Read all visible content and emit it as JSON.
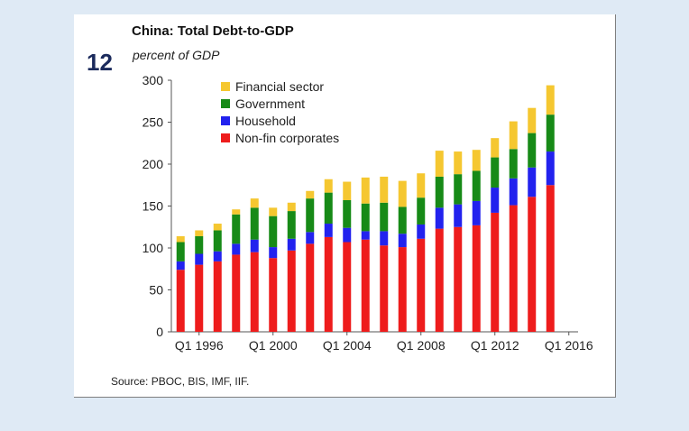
{
  "chart_data": {
    "type": "bar",
    "stacked": true,
    "title": "China: Total Debt-to-GDP",
    "figure_number": "12",
    "subtitle": "percent of GDP",
    "ylabel": "percent of GDP",
    "xlabel": "",
    "ylim": [
      0,
      300
    ],
    "yticks": [
      "0",
      "50",
      "100",
      "150",
      "200",
      "250",
      "300"
    ],
    "xticks": [
      "Q1 1996",
      "Q1 2000",
      "Q1 2004",
      "Q1 2008",
      "Q1 2012",
      "Q1 2016"
    ],
    "legend_position": "top-left",
    "categories": [
      "1995",
      "1996",
      "1997",
      "1998",
      "1999",
      "2000",
      "2001",
      "2002",
      "2003",
      "2004",
      "2005",
      "2006",
      "2007",
      "2008",
      "2009",
      "2010",
      "2011",
      "2012",
      "2013",
      "2014",
      "2015",
      "2016"
    ],
    "series": [
      {
        "name": "Non-fin corporates",
        "color": "#ee1c1c",
        "values": [
          74,
          80,
          84,
          92,
          95,
          88,
          97,
          105,
          113,
          107,
          110,
          103,
          101,
          111,
          123,
          125,
          127,
          142,
          151,
          161,
          175,
          0
        ]
      },
      {
        "name": "Household",
        "color": "#2222ee",
        "values": [
          10,
          13,
          12,
          13,
          15,
          13,
          14,
          14,
          16,
          17,
          10,
          17,
          16,
          17,
          25,
          27,
          29,
          30,
          32,
          35,
          40,
          0
        ]
      },
      {
        "name": "Government",
        "color": "#178a17",
        "values": [
          23,
          21,
          25,
          35,
          38,
          37,
          33,
          40,
          37,
          33,
          33,
          34,
          32,
          32,
          37,
          36,
          36,
          36,
          35,
          41,
          44,
          0
        ]
      },
      {
        "name": "Financial sector",
        "color": "#f5c730",
        "values": [
          7,
          7,
          8,
          6,
          11,
          10,
          10,
          9,
          16,
          22,
          31,
          31,
          31,
          29,
          31,
          27,
          25,
          23,
          33,
          30,
          35,
          0
        ]
      }
    ],
    "legend": [
      "Financial sector",
      "Government",
      "Household",
      "Non-fin corporates"
    ],
    "source": "Source: PBOC, BIS, IMF, IIF."
  }
}
